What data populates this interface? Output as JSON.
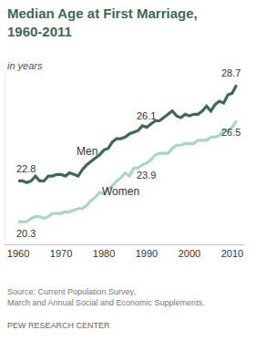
{
  "chart_data": {
    "type": "line",
    "title": "Median Age at First Marriage, 1960-2011",
    "subtitle": "in years",
    "source": "Source: Current Population Survey, March and Annual Social and Economic Supplements.",
    "credit": "PEW RESEARCH CENTER",
    "x": [
      1960,
      1961,
      1962,
      1963,
      1964,
      1965,
      1966,
      1967,
      1968,
      1969,
      1970,
      1971,
      1972,
      1973,
      1974,
      1975,
      1976,
      1977,
      1978,
      1979,
      1980,
      1981,
      1982,
      1983,
      1984,
      1985,
      1986,
      1987,
      1988,
      1989,
      1990,
      1991,
      1992,
      1993,
      1994,
      1995,
      1996,
      1997,
      1998,
      1999,
      2000,
      2001,
      2002,
      2003,
      2004,
      2005,
      2006,
      2007,
      2008,
      2009,
      2010,
      2011
    ],
    "series": [
      {
        "name": "Men",
        "color": "#3d6b52",
        "values": [
          22.8,
          22.8,
          22.7,
          22.8,
          23.1,
          22.8,
          22.8,
          23.1,
          23.1,
          23.2,
          23.2,
          23.1,
          23.3,
          23.2,
          23.1,
          23.5,
          23.8,
          24.0,
          24.2,
          24.4,
          24.7,
          24.8,
          25.2,
          25.4,
          25.4,
          25.5,
          25.7,
          25.8,
          25.9,
          26.2,
          26.1,
          26.3,
          26.5,
          26.5,
          26.7,
          26.9,
          27.1,
          26.8,
          26.7,
          26.9,
          26.8,
          26.9,
          26.9,
          27.1,
          27.4,
          27.1,
          27.5,
          27.7,
          27.6,
          28.1,
          28.2,
          28.7
        ]
      },
      {
        "name": "Women",
        "color": "#a8d8c2",
        "values": [
          20.3,
          20.3,
          20.3,
          20.5,
          20.6,
          20.6,
          20.5,
          20.6,
          20.8,
          20.8,
          20.8,
          20.9,
          20.9,
          21.0,
          21.1,
          21.1,
          21.3,
          21.6,
          21.8,
          22.1,
          22.0,
          22.3,
          22.5,
          22.8,
          23.0,
          23.3,
          23.1,
          23.6,
          23.6,
          23.8,
          23.9,
          24.1,
          24.4,
          24.5,
          24.5,
          24.5,
          24.8,
          25.0,
          25.0,
          25.1,
          25.1,
          25.1,
          25.3,
          25.3,
          25.3,
          25.5,
          25.5,
          25.6,
          25.9,
          25.9,
          26.1,
          26.5
        ]
      }
    ],
    "annotations": [
      {
        "series": "Men",
        "x": 1960,
        "y": 22.8,
        "text": "22.8"
      },
      {
        "series": "Men",
        "x": 1990,
        "y": 26.1,
        "text": "26.1"
      },
      {
        "series": "Men",
        "x": 2011,
        "y": 28.7,
        "text": "28.7"
      },
      {
        "series": "Women",
        "x": 1960,
        "y": 20.3,
        "text": "20.3"
      },
      {
        "series": "Women",
        "x": 1990,
        "y": 23.9,
        "text": "23.9"
      },
      {
        "series": "Women",
        "x": 2011,
        "y": 26.5,
        "text": "26.5"
      }
    ],
    "xlim": [
      1957,
      2013
    ],
    "xticks": [
      1960,
      1970,
      1980,
      1990,
      2000,
      2010
    ],
    "ylim": [
      18.9,
      29.5
    ],
    "tick_labels": "x",
    "grid": false
  }
}
